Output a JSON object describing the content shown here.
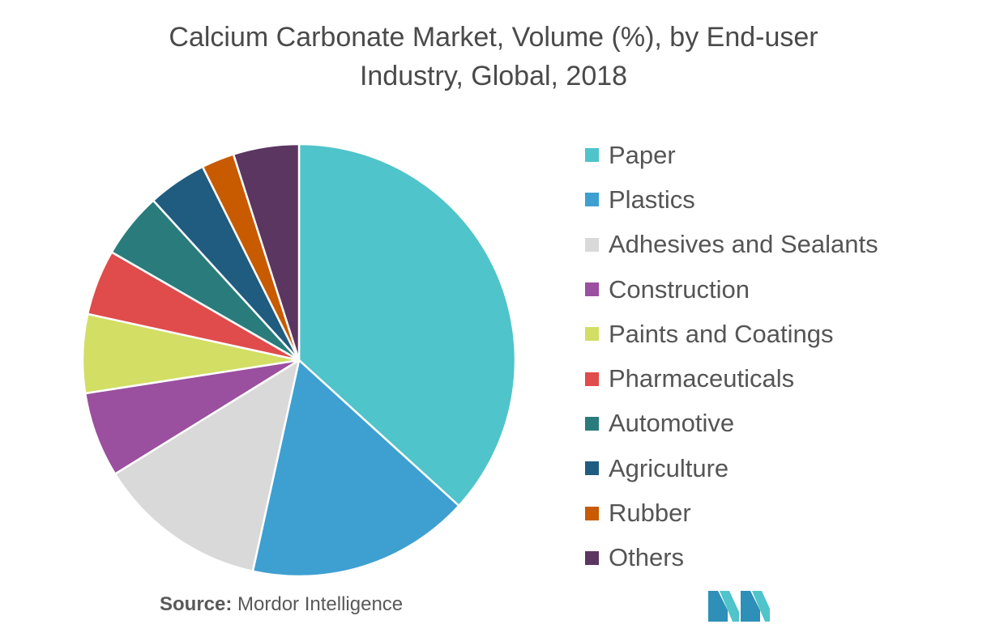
{
  "title_line1": "Calcium Carbonate Market, Volume (%), by End-user",
  "title_line2": "Industry, Global, 2018",
  "source_label": "Source:",
  "source_value": "Mordor Intelligence",
  "chart_data": {
    "type": "pie",
    "title": "Calcium Carbonate Market, Volume (%), by End-user Industry, Global, 2018",
    "legend_position": "right",
    "categories": [
      "Paper",
      "Plastics",
      "Adhesives and Sealants",
      "Construction",
      "Paints and Coatings",
      "Pharmaceuticals",
      "Automotive",
      "Agriculture",
      "Rubber",
      "Others"
    ],
    "values": [
      37.5,
      17.0,
      13.0,
      6.5,
      6.0,
      5.0,
      5.0,
      4.5,
      2.5,
      5.0
    ],
    "colors": [
      "#4FC4CA",
      "#3E9FD1",
      "#D9D9D9",
      "#9B4F9F",
      "#D2DE64",
      "#E04B4B",
      "#2A7C7C",
      "#1F5C80",
      "#C85A00",
      "#5A3660"
    ]
  }
}
